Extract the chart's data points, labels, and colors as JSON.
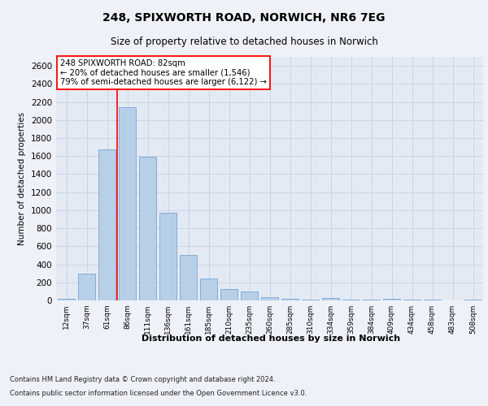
{
  "title_line1": "248, SPIXWORTH ROAD, NORWICH, NR6 7EG",
  "title_line2": "Size of property relative to detached houses in Norwich",
  "xlabel": "Distribution of detached houses by size in Norwich",
  "ylabel": "Number of detached properties",
  "categories": [
    "12sqm",
    "37sqm",
    "61sqm",
    "86sqm",
    "111sqm",
    "136sqm",
    "161sqm",
    "185sqm",
    "210sqm",
    "235sqm",
    "260sqm",
    "285sqm",
    "310sqm",
    "334sqm",
    "359sqm",
    "384sqm",
    "409sqm",
    "434sqm",
    "458sqm",
    "483sqm",
    "508sqm"
  ],
  "values": [
    20,
    300,
    1670,
    2140,
    1595,
    975,
    500,
    245,
    125,
    100,
    40,
    20,
    10,
    25,
    10,
    5,
    15,
    5,
    5,
    0,
    10
  ],
  "bar_color": "#b8cfe8",
  "bar_edge_color": "#6699cc",
  "grid_color": "#c8d4e8",
  "vline_color": "red",
  "annotation_text": "248 SPIXWORTH ROAD: 82sqm\n← 20% of detached houses are smaller (1,546)\n79% of semi-detached houses are larger (6,122) →",
  "annotation_box_color": "white",
  "annotation_box_edge": "red",
  "ylim": [
    0,
    2700
  ],
  "yticks": [
    0,
    200,
    400,
    600,
    800,
    1000,
    1200,
    1400,
    1600,
    1800,
    2000,
    2200,
    2400,
    2600
  ],
  "footer_line1": "Contains HM Land Registry data © Crown copyright and database right 2024.",
  "footer_line2": "Contains public sector information licensed under the Open Government Licence v3.0.",
  "bg_color": "#eef2f8",
  "plot_bg_color": "#e4eaf4"
}
